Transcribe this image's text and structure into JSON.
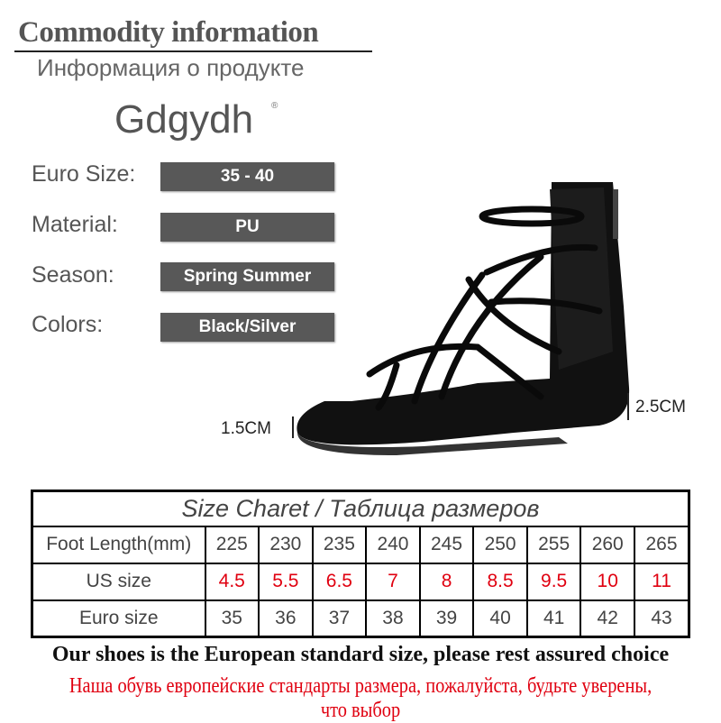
{
  "header": {
    "title": "Commodity information",
    "subtitle": "Информация о продукте",
    "brand": "Gdgydh",
    "brand_mark": "®"
  },
  "specs": [
    {
      "label": "Euro Size:",
      "value": "35 - 40"
    },
    {
      "label": "Material:",
      "value": "PU"
    },
    {
      "label": "Season:",
      "value": "Spring Summer"
    },
    {
      "label": "Colors:",
      "value": "Black/Silver"
    }
  ],
  "measurements": {
    "sole_height": "1.5CM",
    "heel_height": "2.5CM"
  },
  "size_chart": {
    "title": "Size Charet / Таблица размеров",
    "rows": [
      {
        "label": "Foot Length(mm)",
        "values": [
          "225",
          "230",
          "235",
          "240",
          "245",
          "250",
          "255",
          "260",
          "265"
        ]
      },
      {
        "label": "US size",
        "values": [
          "4.5",
          "5.5",
          "6.5",
          "7",
          "8",
          "8.5",
          "9.5",
          "10",
          "11"
        ],
        "color": "#e00010"
      },
      {
        "label": "Euro size",
        "values": [
          "35",
          "36",
          "37",
          "38",
          "39",
          "40",
          "41",
          "42",
          "43"
        ]
      }
    ]
  },
  "notes": {
    "english": "Our shoes is the European standard size, please rest assured choice",
    "russian": "Наша обувь европейские стандарты размера, пожалуйста, будьте уверены, что выбор"
  }
}
